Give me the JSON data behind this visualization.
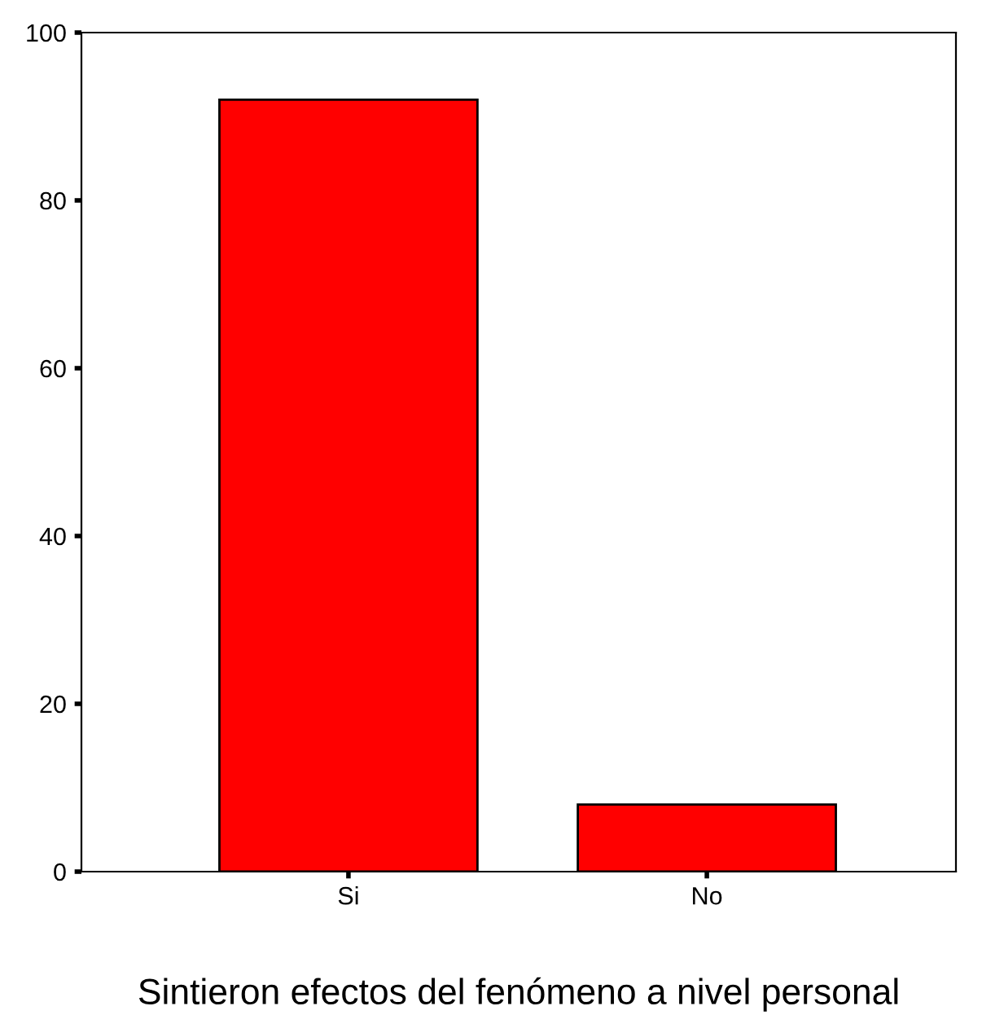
{
  "chart_data": {
    "type": "bar",
    "xlabel": "Sintieron efectos del fenómeno a nivel personal",
    "categories": [
      "Si",
      "No"
    ],
    "values": [
      92,
      8
    ],
    "color": "#ff0000",
    "ylim": [
      0,
      100
    ],
    "yticks": [
      0,
      20,
      40,
      60,
      80,
      100
    ],
    "grid": false,
    "legend": false
  }
}
